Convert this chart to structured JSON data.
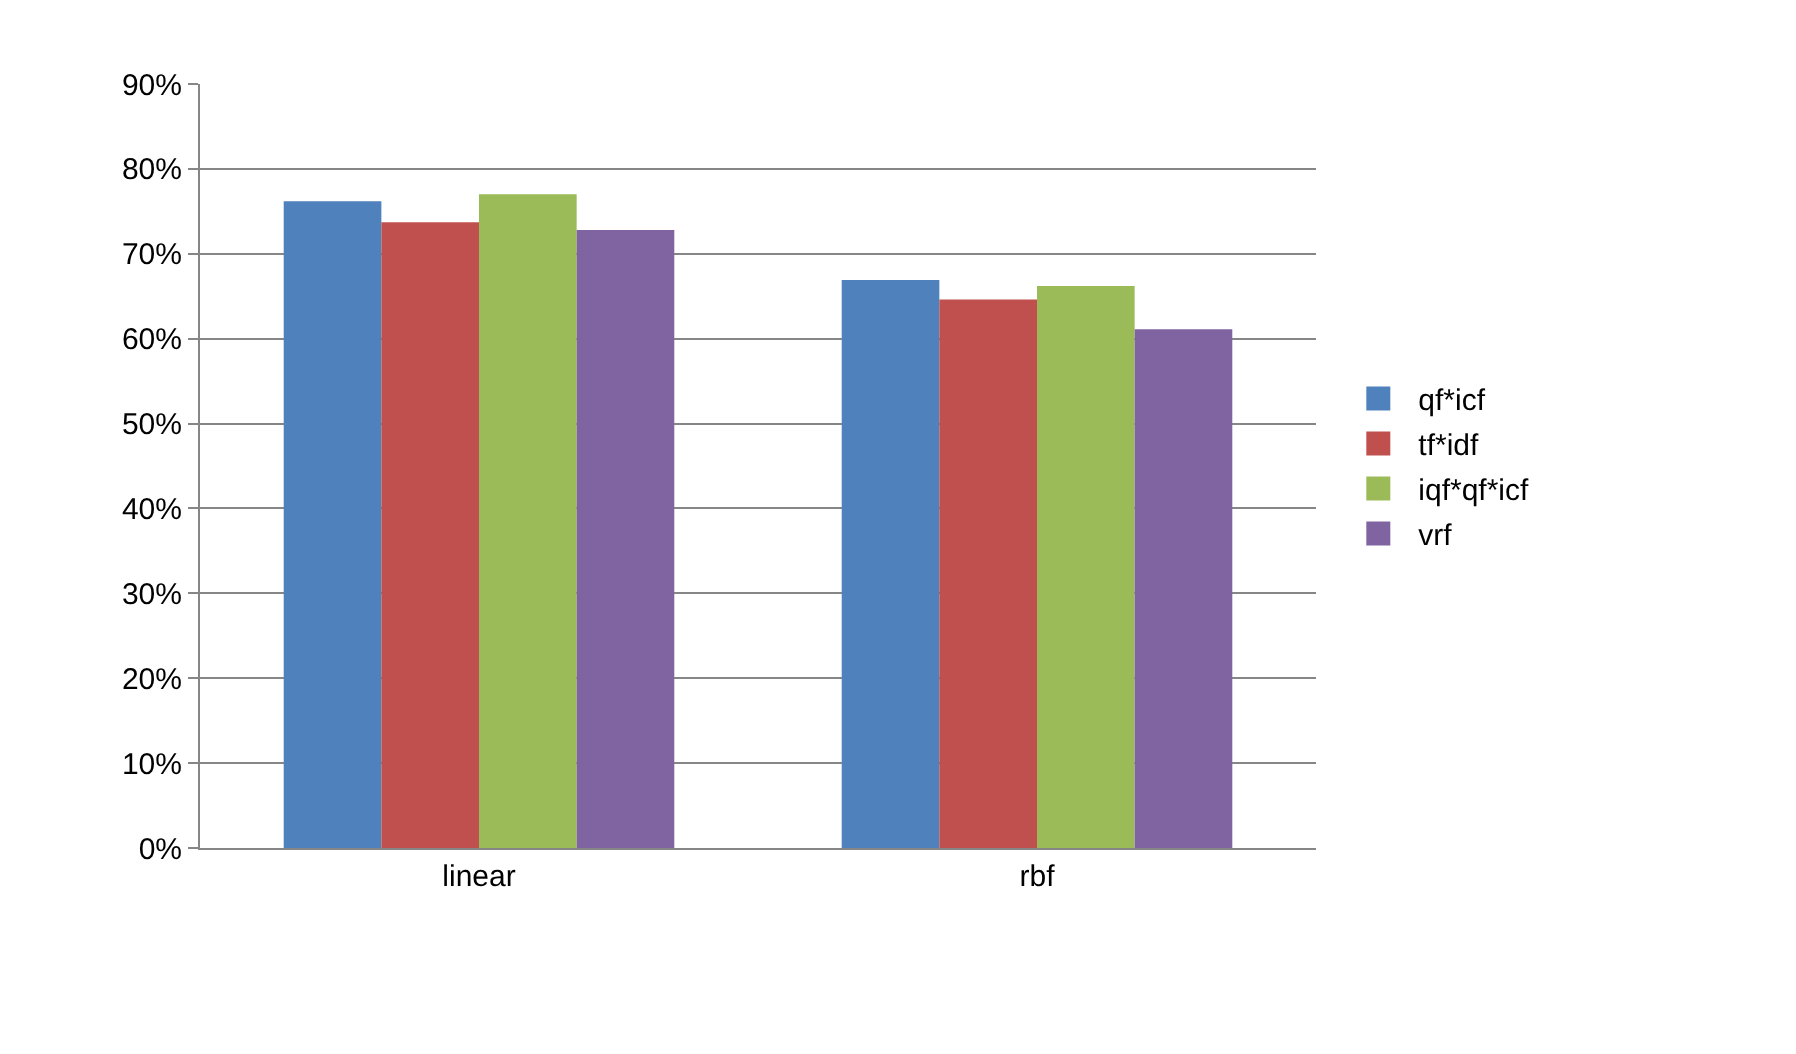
{
  "chart_data": {
    "type": "bar",
    "categories": [
      "linear",
      "rbf"
    ],
    "series": [
      {
        "name": "qf*icf",
        "color": "#4f81bd",
        "values": [
          76.2,
          66.9
        ]
      },
      {
        "name": "tf*idf",
        "color": "#c0504d",
        "values": [
          73.7,
          64.6
        ]
      },
      {
        "name": "iqf*qf*icf",
        "color": "#9bbb59",
        "values": [
          77.0,
          66.2
        ]
      },
      {
        "name": "vrf",
        "color": "#8064a2",
        "values": [
          72.8,
          61.1
        ]
      }
    ],
    "ylim": [
      0,
      90
    ],
    "yticks": [
      {
        "value": 0,
        "label": "0%"
      },
      {
        "value": 10,
        "label": "10%"
      },
      {
        "value": 20,
        "label": "20%"
      },
      {
        "value": 30,
        "label": "30%"
      },
      {
        "value": 40,
        "label": "40%"
      },
      {
        "value": 50,
        "label": "50%"
      },
      {
        "value": 60,
        "label": "60%"
      },
      {
        "value": 70,
        "label": "70%"
      },
      {
        "value": 80,
        "label": "80%"
      },
      {
        "value": 90,
        "label": "90%"
      }
    ],
    "grid": "y",
    "legend": "right"
  }
}
